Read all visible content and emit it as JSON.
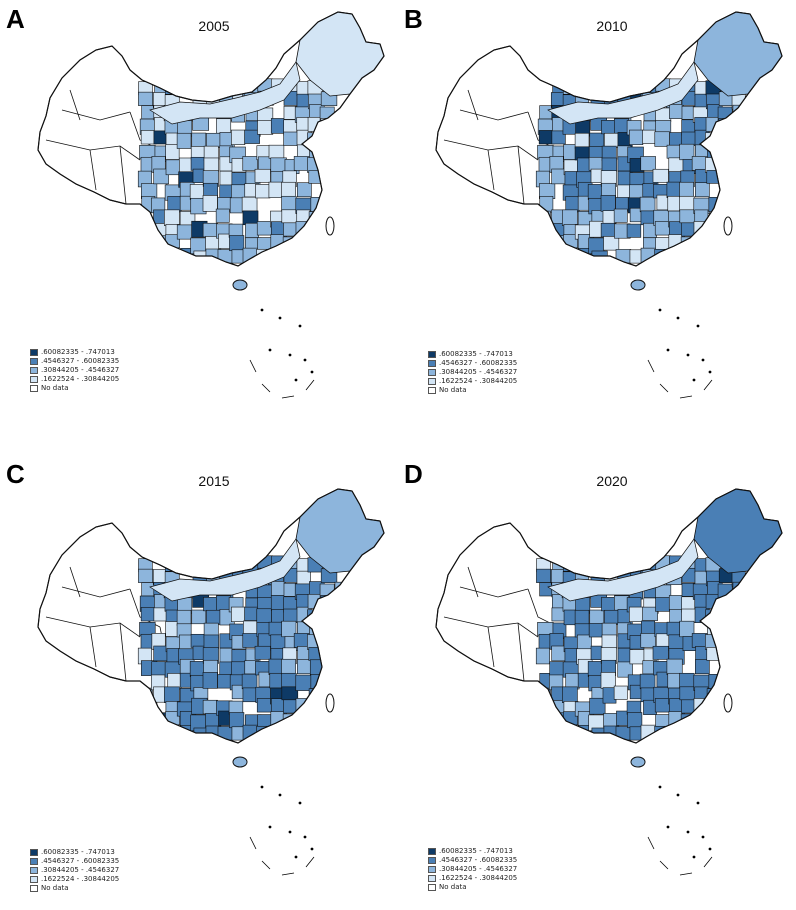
{
  "colors": {
    "c4": "#0e3a66",
    "c3": "#4a7fb5",
    "c2": "#8db5dc",
    "c1": "#d3e5f5",
    "c0": "#ffffff",
    "border": "#111111"
  },
  "legend": [
    {
      "label": ".60082335 - .747013",
      "color_key": "c4"
    },
    {
      "label": ".4546327 - .60082335",
      "color_key": "c3"
    },
    {
      "label": ".30844205 - .4546327",
      "color_key": "c2"
    },
    {
      "label": ".1622524 - .30844205",
      "color_key": "c1"
    },
    {
      "label": "No data",
      "color_key": "c0"
    }
  ],
  "panels": [
    {
      "letter": "A",
      "year": "2005",
      "intensity_level": 1
    },
    {
      "letter": "B",
      "year": "2010",
      "intensity_level": 2
    },
    {
      "letter": "C",
      "year": "2015",
      "intensity_level": 3
    },
    {
      "letter": "D",
      "year": "2020",
      "intensity_level": 3
    }
  ]
}
